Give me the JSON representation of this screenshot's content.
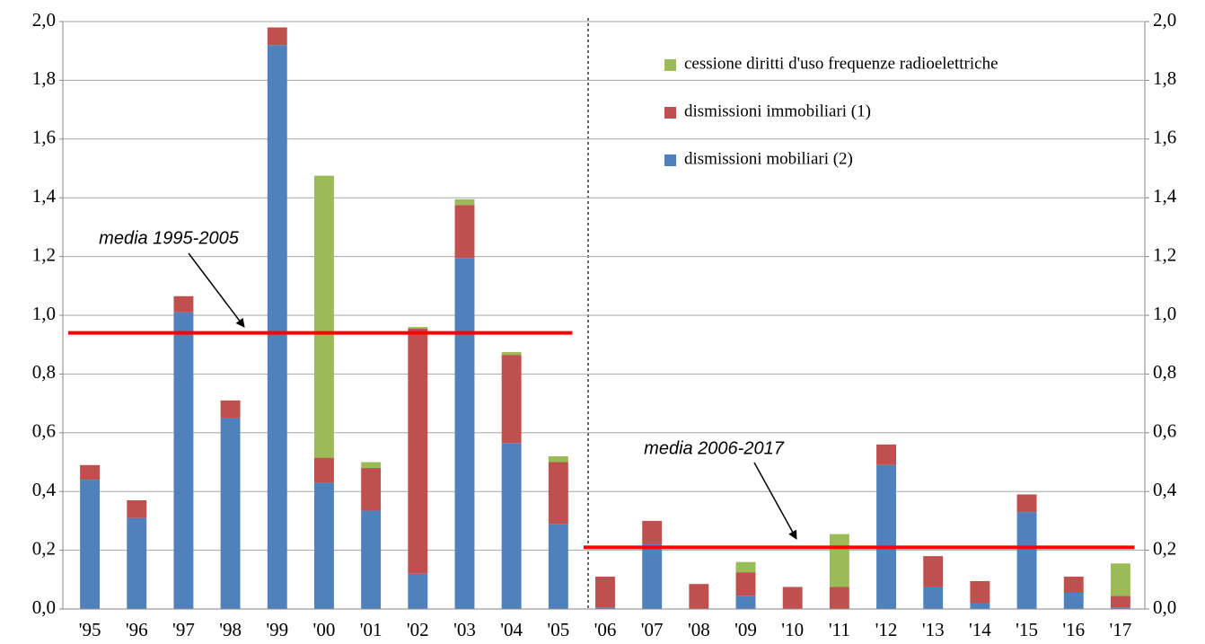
{
  "chart_data": {
    "type": "stacked_bar",
    "categories": [
      "'95",
      "'96",
      "'97",
      "'98",
      "'99",
      "'00",
      "'01",
      "'02",
      "'03",
      "'04",
      "'05",
      "'06",
      "'07",
      "'08",
      "'09",
      "'10",
      "'11",
      "'12",
      "'13",
      "'14",
      "'15",
      "'16",
      "'17"
    ],
    "series": [
      {
        "name": "dismissioni mobiliari (2)",
        "color": "#4f81bd",
        "values": [
          0.44,
          0.31,
          1.01,
          0.65,
          1.92,
          0.43,
          0.335,
          0.12,
          1.195,
          0.565,
          0.29,
          0.005,
          0.22,
          0,
          0.045,
          0,
          0,
          0.49,
          0.075,
          0.02,
          0.33,
          0.055,
          0.005
        ]
      },
      {
        "name": "dismissioni immobiliari (1)",
        "color": "#c0504d",
        "values": [
          0.05,
          0.06,
          0.055,
          0.06,
          0.06,
          0.085,
          0.145,
          0.835,
          0.18,
          0.3,
          0.21,
          0.105,
          0.08,
          0.085,
          0.08,
          0.075,
          0.075,
          0.07,
          0.105,
          0.075,
          0.06,
          0.055,
          0.04
        ]
      },
      {
        "name": "cessione diritti d'uso frequenze radioelettriche",
        "color": "#9bbb59",
        "values": [
          0,
          0,
          0,
          0,
          0,
          0.96,
          0.02,
          0.005,
          0.02,
          0.01,
          0.02,
          0,
          0,
          0,
          0.035,
          0,
          0.18,
          0,
          0,
          0,
          0,
          0,
          0.11
        ]
      }
    ],
    "ylim": [
      0,
      2.0
    ],
    "yticks": [
      {
        "value": 0,
        "label": "0,0"
      },
      {
        "value": 0.2,
        "label": "0,2"
      },
      {
        "value": 0.4,
        "label": "0,4"
      },
      {
        "value": 0.6,
        "label": "0,6"
      },
      {
        "value": 0.8,
        "label": "0,8"
      },
      {
        "value": 1.0,
        "label": "1,0"
      },
      {
        "value": 1.2,
        "label": "1,2"
      },
      {
        "value": 1.4,
        "label": "1,4"
      },
      {
        "value": 1.6,
        "label": "1,6"
      },
      {
        "value": 1.8,
        "label": "1,8"
      },
      {
        "value": 2.0,
        "label": "2,0"
      }
    ],
    "y2lim": [
      0,
      2.0
    ],
    "y2ticks": [
      {
        "value": 0,
        "label": "0,0"
      },
      {
        "value": 0.2,
        "label": "0,2"
      },
      {
        "value": 0.4,
        "label": "0,4"
      },
      {
        "value": 0.6,
        "label": "0,6"
      },
      {
        "value": 0.8,
        "label": "0,8"
      },
      {
        "value": 1.0,
        "label": "1,0"
      },
      {
        "value": 1.2,
        "label": "1,2"
      },
      {
        "value": 1.4,
        "label": "1,4"
      },
      {
        "value": 1.6,
        "label": "1,6"
      },
      {
        "value": 1.8,
        "label": "1,8"
      },
      {
        "value": 2.0,
        "label": "2,0"
      }
    ],
    "grid": true,
    "reference_lines": [
      {
        "label": "media 1995-2005",
        "value": 0.94,
        "from": "'95",
        "to": "'05",
        "color": "#ff0000"
      },
      {
        "label": "media 2006-2017",
        "value": 0.21,
        "from": "'06",
        "to": "'17",
        "color": "#ff0000"
      }
    ]
  }
}
